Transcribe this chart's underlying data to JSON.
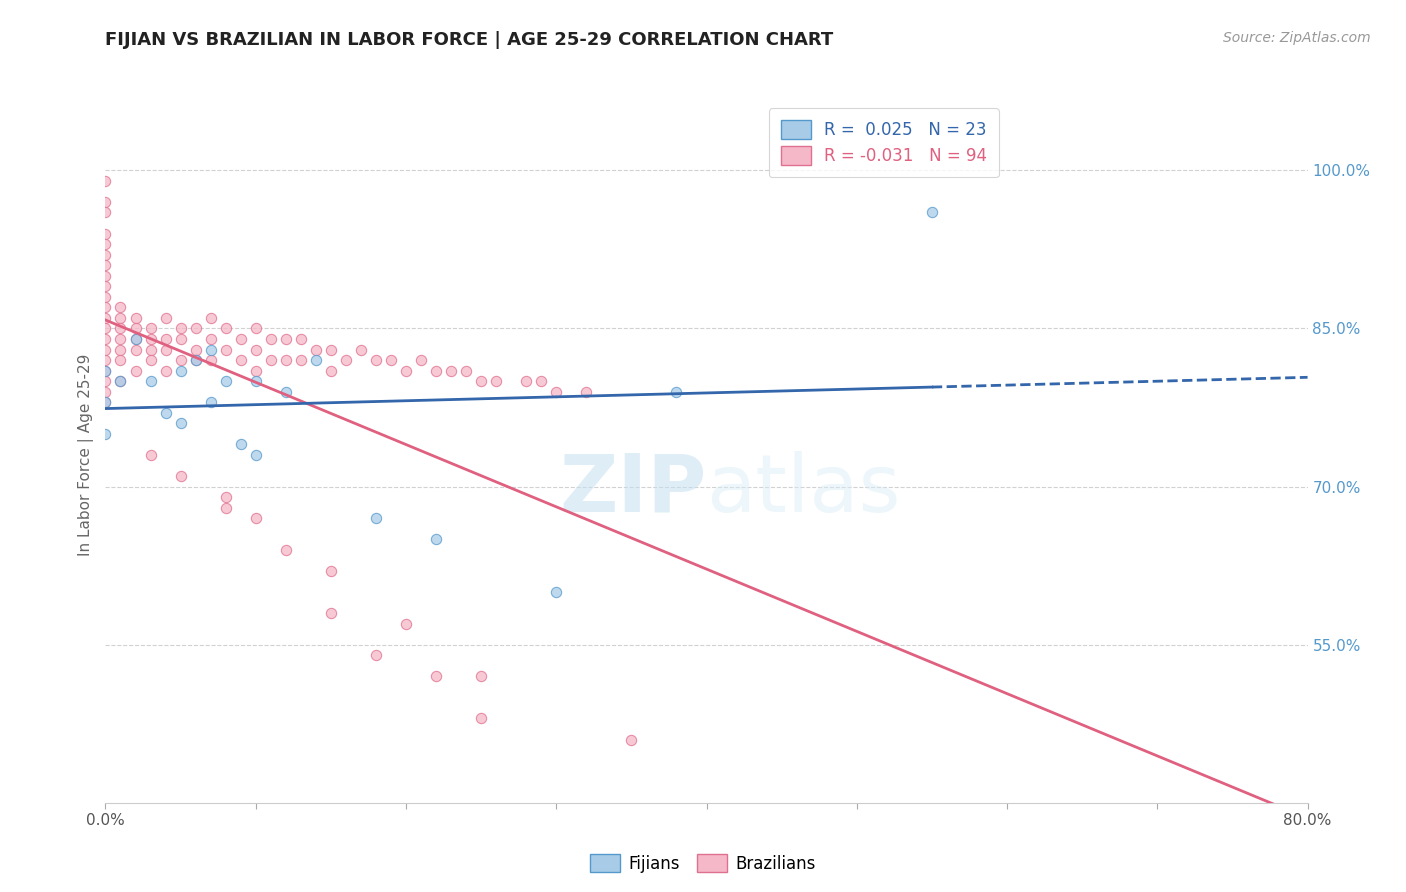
{
  "title": "FIJIAN VS BRAZILIAN IN LABOR FORCE | AGE 25-29 CORRELATION CHART",
  "source_text": "Source: ZipAtlas.com",
  "ylabel": "In Labor Force | Age 25-29",
  "watermark": "ZIPatlas",
  "fijian_color": "#a8cce8",
  "fijian_edge_color": "#5599cc",
  "brazilian_color": "#f4b8c8",
  "brazilian_edge_color": "#e07090",
  "fijian_line_color": "#3366aa",
  "brazilian_line_color": "#e06080",
  "xlim": [
    0.0,
    0.8
  ],
  "ylim": [
    0.4,
    1.06
  ],
  "right_yticks": [
    0.55,
    0.7,
    0.85,
    1.0
  ],
  "right_yticklabels": [
    "55.0%",
    "70.0%",
    "85.0%",
    "100.0%"
  ],
  "xtick_positions": [
    0.0,
    0.1,
    0.2,
    0.3,
    0.4,
    0.5,
    0.6,
    0.7,
    0.8
  ],
  "fijian_R": 0.025,
  "fijian_N": 23,
  "brazilian_R": -0.031,
  "brazilian_N": 94,
  "fijian_scatter_x": [
    0.0,
    0.0,
    0.0,
    0.01,
    0.02,
    0.03,
    0.04,
    0.05,
    0.05,
    0.06,
    0.07,
    0.07,
    0.08,
    0.09,
    0.1,
    0.1,
    0.12,
    0.14,
    0.18,
    0.22,
    0.3,
    0.38,
    0.55
  ],
  "fijian_scatter_y": [
    0.81,
    0.78,
    0.75,
    0.8,
    0.84,
    0.8,
    0.77,
    0.81,
    0.76,
    0.82,
    0.83,
    0.78,
    0.8,
    0.74,
    0.8,
    0.73,
    0.79,
    0.82,
    0.67,
    0.65,
    0.6,
    0.79,
    0.96
  ],
  "brazilian_scatter_x": [
    0.0,
    0.0,
    0.0,
    0.0,
    0.0,
    0.0,
    0.0,
    0.0,
    0.0,
    0.0,
    0.0,
    0.0,
    0.0,
    0.0,
    0.0,
    0.0,
    0.0,
    0.0,
    0.0,
    0.0,
    0.01,
    0.01,
    0.01,
    0.01,
    0.01,
    0.01,
    0.01,
    0.02,
    0.02,
    0.02,
    0.02,
    0.02,
    0.03,
    0.03,
    0.03,
    0.03,
    0.04,
    0.04,
    0.04,
    0.04,
    0.05,
    0.05,
    0.05,
    0.06,
    0.06,
    0.06,
    0.07,
    0.07,
    0.07,
    0.08,
    0.08,
    0.09,
    0.09,
    0.1,
    0.1,
    0.1,
    0.11,
    0.11,
    0.12,
    0.12,
    0.13,
    0.13,
    0.14,
    0.15,
    0.15,
    0.16,
    0.17,
    0.18,
    0.19,
    0.2,
    0.21,
    0.22,
    0.23,
    0.24,
    0.25,
    0.26,
    0.28,
    0.29,
    0.3,
    0.32,
    0.08,
    0.12,
    0.15,
    0.18,
    0.22,
    0.25,
    0.03,
    0.05,
    0.08,
    0.1,
    0.15,
    0.2,
    0.25,
    0.35
  ],
  "brazilian_scatter_y": [
    0.99,
    0.97,
    0.96,
    0.94,
    0.93,
    0.92,
    0.91,
    0.9,
    0.89,
    0.88,
    0.87,
    0.86,
    0.85,
    0.84,
    0.83,
    0.82,
    0.81,
    0.8,
    0.79,
    0.78,
    0.87,
    0.86,
    0.85,
    0.84,
    0.83,
    0.82,
    0.8,
    0.86,
    0.85,
    0.84,
    0.83,
    0.81,
    0.85,
    0.84,
    0.83,
    0.82,
    0.86,
    0.84,
    0.83,
    0.81,
    0.85,
    0.84,
    0.82,
    0.85,
    0.83,
    0.82,
    0.86,
    0.84,
    0.82,
    0.85,
    0.83,
    0.84,
    0.82,
    0.85,
    0.83,
    0.81,
    0.84,
    0.82,
    0.84,
    0.82,
    0.84,
    0.82,
    0.83,
    0.83,
    0.81,
    0.82,
    0.83,
    0.82,
    0.82,
    0.81,
    0.82,
    0.81,
    0.81,
    0.81,
    0.8,
    0.8,
    0.8,
    0.8,
    0.79,
    0.79,
    0.68,
    0.64,
    0.58,
    0.54,
    0.52,
    0.48,
    0.73,
    0.71,
    0.69,
    0.67,
    0.62,
    0.57,
    0.52,
    0.46
  ]
}
